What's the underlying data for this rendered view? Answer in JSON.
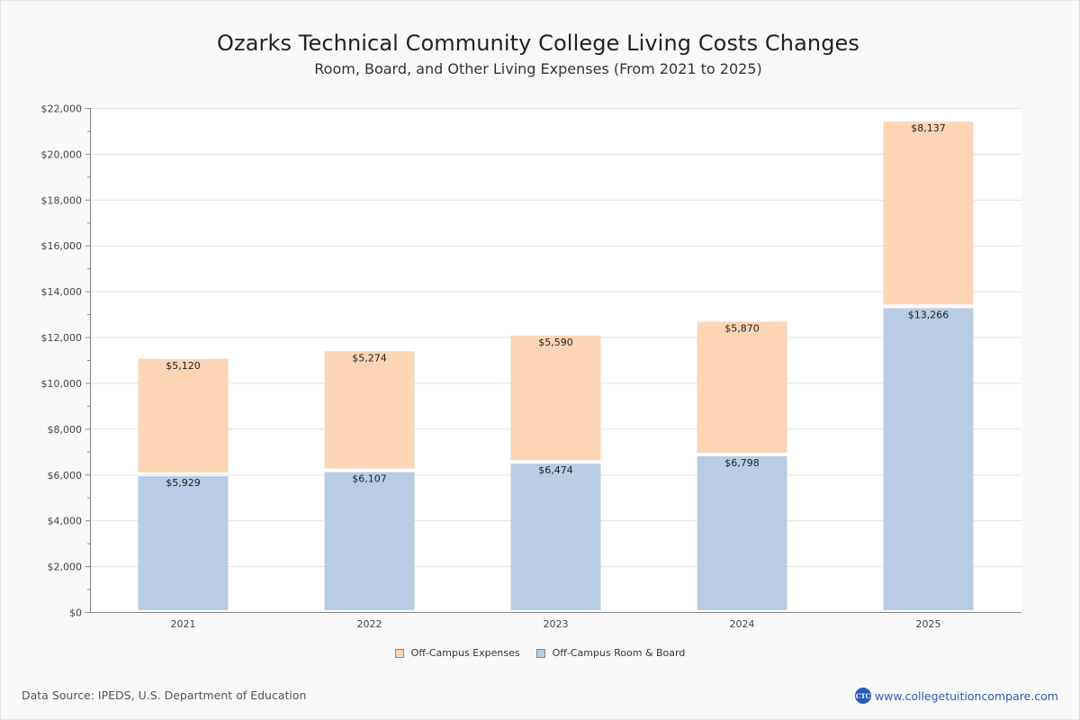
{
  "chart_data": {
    "type": "bar",
    "stacked": true,
    "title": "Ozarks Technical Community College Living Costs Changes",
    "subtitle": "Room, Board, and Other Living Expenses (From 2021 to 2025)",
    "xlabel": "",
    "ylabel": "",
    "categories": [
      "2021",
      "2022",
      "2023",
      "2024",
      "2025"
    ],
    "series": [
      {
        "name": "Off-Campus Room & Board",
        "color": "#b9cce4",
        "values": [
          5929,
          6107,
          6474,
          6798,
          13266
        ],
        "labels": [
          "$5,929",
          "$6,107",
          "$6,474",
          "$6,798",
          "$13,266"
        ]
      },
      {
        "name": "Off-Campus Expenses",
        "color": "#fcd5b4",
        "values": [
          5120,
          5274,
          5590,
          5870,
          8137
        ],
        "labels": [
          "$5,120",
          "$5,274",
          "$5,590",
          "$5,870",
          "$8,137"
        ]
      }
    ],
    "ylim": [
      0,
      22000
    ],
    "yticks": [
      0,
      2000,
      4000,
      6000,
      8000,
      10000,
      12000,
      14000,
      16000,
      18000,
      20000,
      22000
    ],
    "ytick_labels": [
      "$0",
      "$2,000",
      "$4,000",
      "$6,000",
      "$8,000",
      "$10,000",
      "$12,000",
      "$14,000",
      "$16,000",
      "$18,000",
      "$20,000",
      "$22,000"
    ],
    "grid": true,
    "legend": "bottom-center"
  },
  "legend": {
    "items": [
      {
        "label": "Off-Campus Expenses",
        "color": "#fcd5b4"
      },
      {
        "label": "Off-Campus Room & Board",
        "color": "#b9cce4"
      }
    ]
  },
  "footer": {
    "source": "Data Source: IPEDS, U.S. Department of Education",
    "brand_logo": "CTC",
    "brand_url_text": "www.collegetuitioncompare.com"
  }
}
